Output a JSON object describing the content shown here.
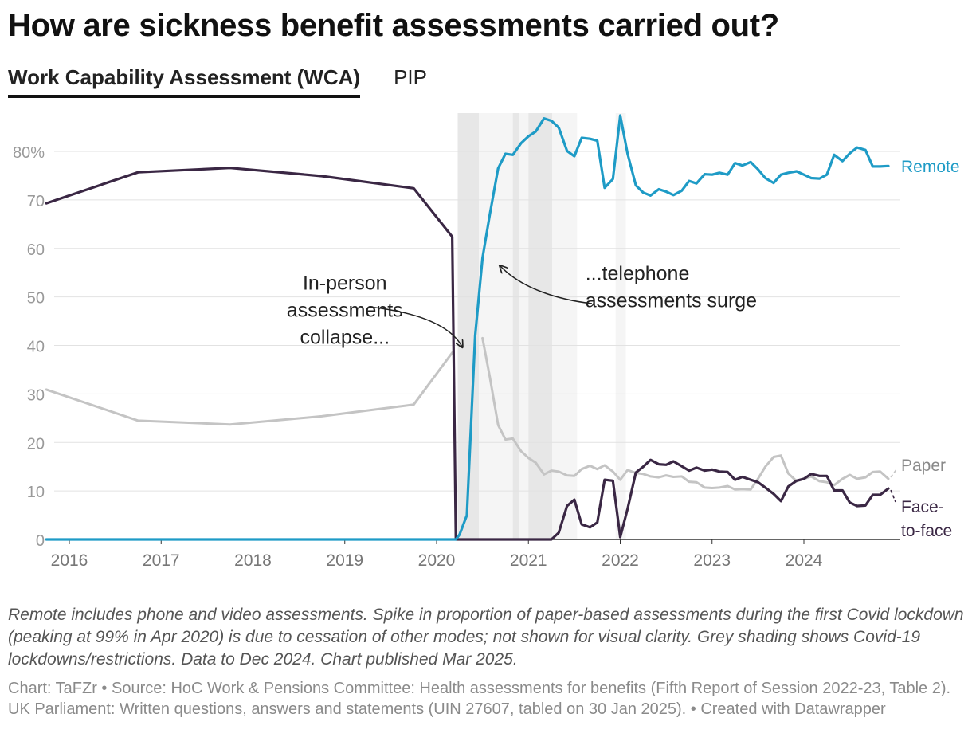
{
  "page": {
    "title": "How are sickness benefit assessments carried out?",
    "tabs": [
      {
        "label": "Work Capability Assessment (WCA)",
        "active": true
      },
      {
        "label": "PIP",
        "active": false
      }
    ],
    "notes": "Remote includes phone and video assessments. Spike in proportion of paper-based assessments during the first Covid lockdown (peaking at 99% in Apr 2020) is due to cessation of other modes; not shown for visual clarity. Grey shading shows Covid-19 lockdowns/restrictions. Data to Dec 2024. Chart published Mar 2025.",
    "footer": "Chart: TaFZr • Source: HoC Work & Pensions Committee: Health assessments for benefits (Fifth Report of Session 2022-23, Table 2). UK Parliament: Written questions, answers and statements (UIN 27607, tabled on 30 Jan 2025). • Created with Datawrapper"
  },
  "colors": {
    "remote": "#1e9bc6",
    "paper": "#c4c4c4",
    "face_to_face": "#3a2744",
    "grid": "#e2e2e2",
    "axis_text": "#9a9a9a",
    "shade_dark": "#e7e7e7",
    "shade_light": "#f5f5f5"
  },
  "chart_data": {
    "type": "line",
    "title": "How are sickness benefit assessments carried out?",
    "xlabel": "",
    "ylabel": "",
    "units": "%",
    "xlim": [
      2015.75,
      2025.0
    ],
    "ylim": [
      0,
      88
    ],
    "x_ticks": [
      2016,
      2017,
      2018,
      2019,
      2020,
      2021,
      2022,
      2023,
      2024
    ],
    "y_ticks": [
      0,
      10,
      20,
      30,
      40,
      50,
      60,
      70,
      80
    ],
    "y_tick_labels": [
      "0",
      "10",
      "20",
      "30",
      "40",
      "50",
      "60",
      "70",
      "80%"
    ],
    "grid": true,
    "shaded_periods": [
      {
        "start": 2020.23,
        "end": 2020.46,
        "tone": "dark"
      },
      {
        "start": 2020.46,
        "end": 2020.83,
        "tone": "light"
      },
      {
        "start": 2020.83,
        "end": 2020.9,
        "tone": "dark"
      },
      {
        "start": 2020.9,
        "end": 2021.0,
        "tone": "light"
      },
      {
        "start": 2021.0,
        "end": 2021.26,
        "tone": "dark"
      },
      {
        "start": 2021.26,
        "end": 2021.53,
        "tone": "light"
      },
      {
        "start": 2021.95,
        "end": 2022.06,
        "tone": "light"
      }
    ],
    "series": [
      {
        "name": "Remote",
        "label": "Remote",
        "color_key": "remote",
        "points": [
          [
            2015.75,
            0
          ],
          [
            2020.21,
            0
          ],
          [
            2020.25,
            1
          ],
          [
            2020.33,
            5
          ],
          [
            2020.42,
            42
          ],
          [
            2020.5,
            58
          ],
          [
            2020.58,
            67
          ],
          [
            2020.67,
            76.5
          ],
          [
            2020.75,
            79.5
          ],
          [
            2020.83,
            79.3
          ],
          [
            2020.92,
            81.7
          ],
          [
            2021.0,
            83.1
          ],
          [
            2021.08,
            84.1
          ],
          [
            2021.17,
            86.8
          ],
          [
            2021.25,
            86.3
          ],
          [
            2021.33,
            84.9
          ],
          [
            2021.42,
            80.1
          ],
          [
            2021.5,
            79
          ],
          [
            2021.58,
            82.8
          ],
          [
            2021.67,
            82.6
          ],
          [
            2021.75,
            82.2
          ],
          [
            2021.83,
            72.5
          ],
          [
            2021.92,
            74.3
          ],
          [
            2022.0,
            87.4
          ],
          [
            2022.08,
            79.5
          ],
          [
            2022.17,
            73
          ],
          [
            2022.25,
            71.5
          ],
          [
            2022.33,
            70.9
          ],
          [
            2022.42,
            72.2
          ],
          [
            2022.5,
            71.7
          ],
          [
            2022.58,
            71
          ],
          [
            2022.67,
            71.9
          ],
          [
            2022.75,
            73.9
          ],
          [
            2022.83,
            73.4
          ],
          [
            2022.92,
            75.3
          ],
          [
            2023.0,
            75.2
          ],
          [
            2023.08,
            75.6
          ],
          [
            2023.17,
            75.2
          ],
          [
            2023.25,
            77.6
          ],
          [
            2023.33,
            77.1
          ],
          [
            2023.42,
            77.8
          ],
          [
            2023.5,
            76.3
          ],
          [
            2023.58,
            74.5
          ],
          [
            2023.67,
            73.5
          ],
          [
            2023.75,
            75.2
          ],
          [
            2023.83,
            75.6
          ],
          [
            2023.92,
            75.9
          ],
          [
            2024.0,
            75.2
          ],
          [
            2024.08,
            74.5
          ],
          [
            2024.17,
            74.4
          ],
          [
            2024.25,
            75.2
          ],
          [
            2024.33,
            79.3
          ],
          [
            2024.42,
            78
          ],
          [
            2024.5,
            79.6
          ],
          [
            2024.58,
            80.8
          ],
          [
            2024.67,
            80.3
          ],
          [
            2024.75,
            76.9
          ],
          [
            2024.83,
            76.9
          ],
          [
            2024.92,
            77
          ]
        ]
      },
      {
        "name": "Paper",
        "label": "Paper",
        "color_key": "paper",
        "points": [
          [
            2015.75,
            30.9
          ],
          [
            2016.75,
            24.5
          ],
          [
            2017.75,
            23.7
          ],
          [
            2018.75,
            25.4
          ],
          [
            2019.75,
            27.8
          ],
          [
            2020.17,
            38.5
          ]
        ],
        "points_after_gap": [
          [
            2020.5,
            41.5
          ],
          [
            2020.58,
            33.5
          ],
          [
            2020.67,
            23.6
          ],
          [
            2020.75,
            20.6
          ],
          [
            2020.83,
            20.8
          ],
          [
            2020.92,
            18.2
          ],
          [
            2021.0,
            16.8
          ],
          [
            2021.08,
            15.8
          ],
          [
            2021.17,
            13.4
          ],
          [
            2021.25,
            14.2
          ],
          [
            2021.33,
            14
          ],
          [
            2021.42,
            13.2
          ],
          [
            2021.5,
            13.1
          ],
          [
            2021.58,
            14.5
          ],
          [
            2021.67,
            15.2
          ],
          [
            2021.75,
            14.5
          ],
          [
            2021.83,
            15.3
          ],
          [
            2021.92,
            14
          ],
          [
            2022.0,
            12.3
          ],
          [
            2022.08,
            14.3
          ],
          [
            2022.17,
            13.7
          ],
          [
            2022.25,
            13.5
          ],
          [
            2022.33,
            13
          ],
          [
            2022.42,
            12.8
          ],
          [
            2022.5,
            13.2
          ],
          [
            2022.58,
            12.9
          ],
          [
            2022.67,
            13
          ],
          [
            2022.75,
            11.9
          ],
          [
            2022.83,
            11.8
          ],
          [
            2022.92,
            10.7
          ],
          [
            2023.0,
            10.6
          ],
          [
            2023.08,
            10.7
          ],
          [
            2023.17,
            11
          ],
          [
            2023.25,
            10.3
          ],
          [
            2023.33,
            10.4
          ],
          [
            2023.42,
            10.3
          ],
          [
            2023.5,
            12.5
          ],
          [
            2023.58,
            15
          ],
          [
            2023.67,
            17
          ],
          [
            2023.75,
            17.3
          ],
          [
            2023.83,
            13.6
          ],
          [
            2023.92,
            12
          ],
          [
            2024.0,
            12.5
          ],
          [
            2024.08,
            13
          ],
          [
            2024.17,
            12
          ],
          [
            2024.25,
            11.8
          ],
          [
            2024.33,
            11.2
          ],
          [
            2024.42,
            12.5
          ],
          [
            2024.5,
            13.3
          ],
          [
            2024.58,
            12.5
          ],
          [
            2024.67,
            12.8
          ],
          [
            2024.75,
            13.9
          ],
          [
            2024.83,
            14
          ],
          [
            2024.92,
            12.5
          ]
        ]
      },
      {
        "name": "Face-to-face",
        "label": "Face-to-face",
        "color_key": "face_to_face",
        "points": [
          [
            2015.75,
            69.3
          ],
          [
            2016.75,
            75.7
          ],
          [
            2017.75,
            76.6
          ],
          [
            2018.75,
            74.9
          ],
          [
            2019.75,
            72.4
          ],
          [
            2020.17,
            62.4
          ],
          [
            2020.21,
            0
          ],
          [
            2021.25,
            0
          ],
          [
            2021.33,
            1.4
          ],
          [
            2021.42,
            6.9
          ],
          [
            2021.5,
            8.2
          ],
          [
            2021.58,
            3.1
          ],
          [
            2021.67,
            2.5
          ],
          [
            2021.75,
            3.5
          ],
          [
            2021.83,
            12.3
          ],
          [
            2021.92,
            12.1
          ],
          [
            2022.0,
            0.5
          ],
          [
            2022.08,
            6.3
          ],
          [
            2022.17,
            13.8
          ],
          [
            2022.25,
            15
          ],
          [
            2022.33,
            16.4
          ],
          [
            2022.42,
            15.5
          ],
          [
            2022.5,
            15.4
          ],
          [
            2022.58,
            16.1
          ],
          [
            2022.67,
            15.1
          ],
          [
            2022.75,
            14.2
          ],
          [
            2022.83,
            14.8
          ],
          [
            2022.92,
            14.2
          ],
          [
            2023.0,
            14.4
          ],
          [
            2023.08,
            14
          ],
          [
            2023.17,
            13.9
          ],
          [
            2023.25,
            12.3
          ],
          [
            2023.33,
            12.9
          ],
          [
            2023.42,
            12.3
          ],
          [
            2023.5,
            11.8
          ],
          [
            2023.58,
            10.7
          ],
          [
            2023.67,
            9.4
          ],
          [
            2023.75,
            7.9
          ],
          [
            2023.83,
            10.9
          ],
          [
            2023.92,
            12.1
          ],
          [
            2024.0,
            12.5
          ],
          [
            2024.08,
            13.5
          ],
          [
            2024.17,
            13.1
          ],
          [
            2024.25,
            13.1
          ],
          [
            2024.33,
            10.1
          ],
          [
            2024.42,
            10.1
          ],
          [
            2024.5,
            7.6
          ],
          [
            2024.58,
            6.9
          ],
          [
            2024.67,
            7
          ],
          [
            2024.75,
            9.2
          ],
          [
            2024.83,
            9.2
          ],
          [
            2024.92,
            10.5
          ]
        ]
      }
    ],
    "annotations": [
      {
        "lines": [
          "In-person",
          "assessments",
          "collapse..."
        ],
        "anchor": "middle",
        "x": 2019.0,
        "y": 51.5
      },
      {
        "lines": [
          "...telephone",
          "assessments surge"
        ],
        "anchor": "start",
        "x": 2021.62,
        "y": 53.5
      }
    ]
  }
}
